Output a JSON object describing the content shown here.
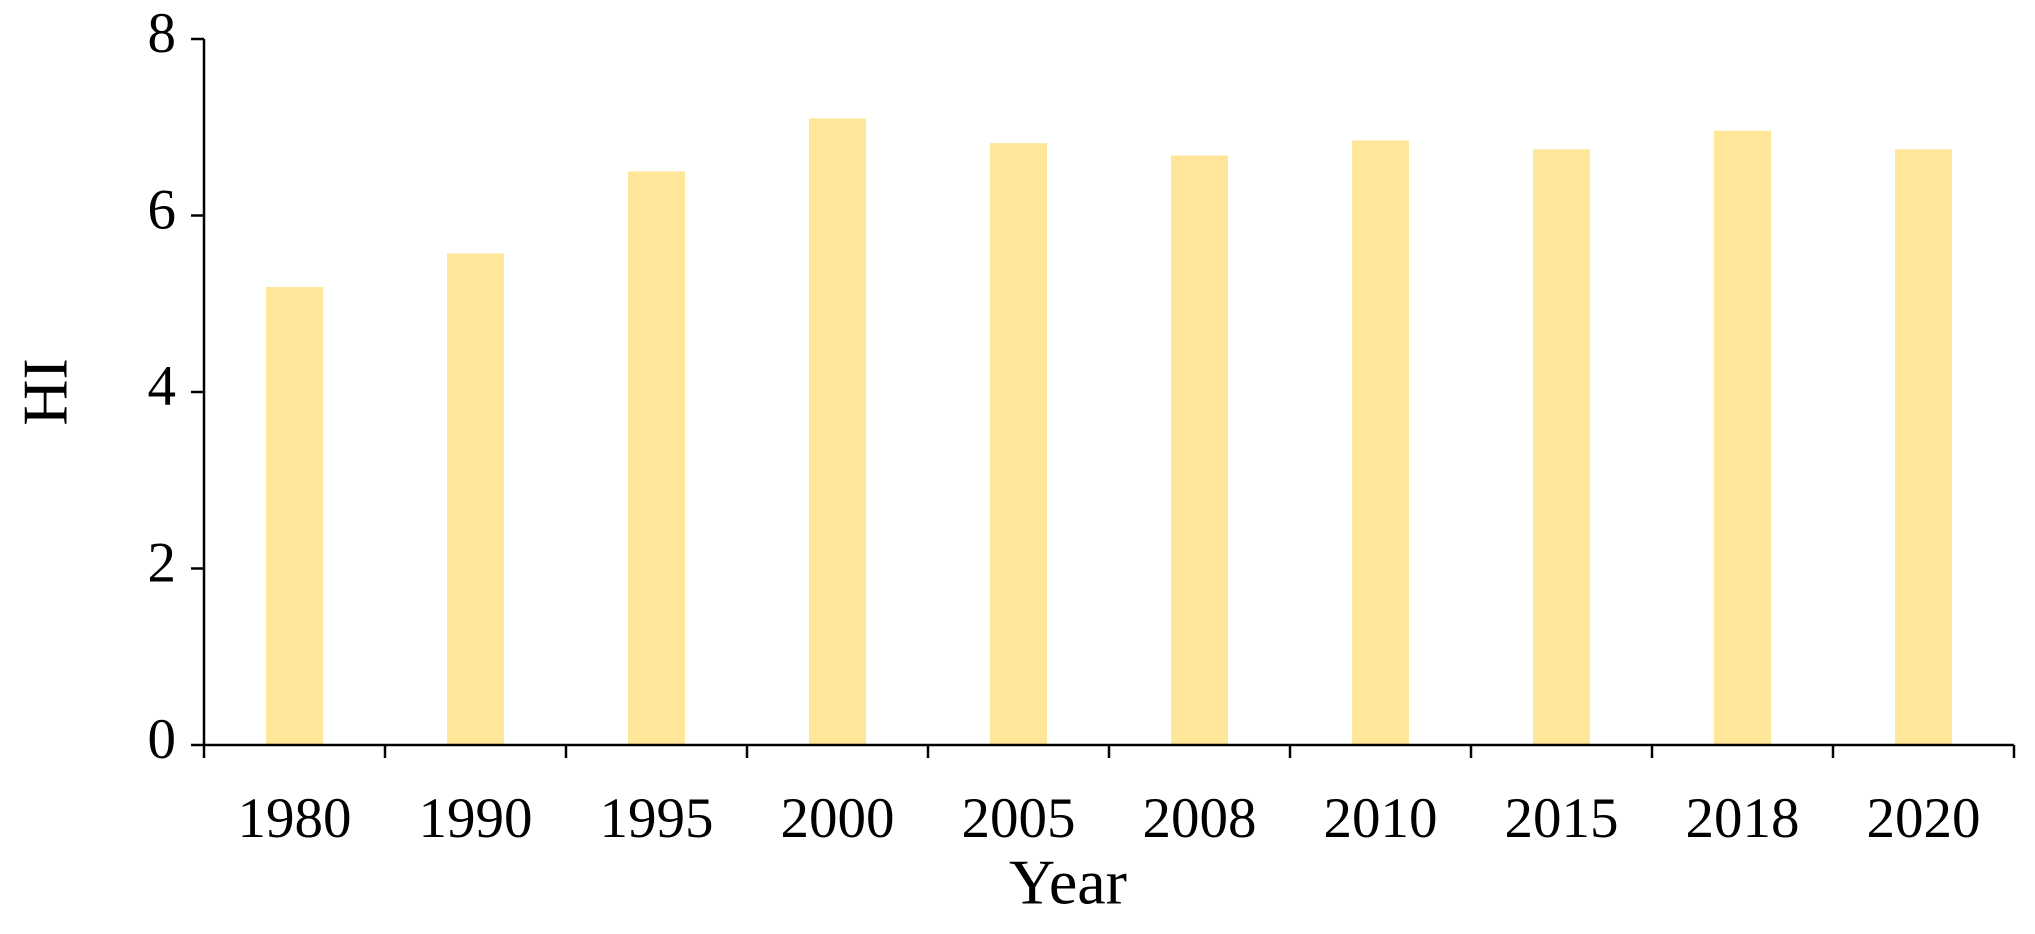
{
  "chart_data": {
    "type": "bar",
    "x_label": "Year",
    "y_label": "HI",
    "categories": [
      "1980",
      "1990",
      "1995",
      "2000",
      "2005",
      "2008",
      "2010",
      "2015",
      "2018",
      "2020"
    ],
    "values": [
      5.19,
      5.57,
      6.5,
      7.1,
      6.82,
      6.68,
      6.85,
      6.75,
      6.96,
      6.75
    ],
    "color": "#ffe699",
    "ylim": [
      0,
      8
    ],
    "yticks": [
      0,
      2,
      4,
      6,
      8
    ],
    "grid": false
  }
}
